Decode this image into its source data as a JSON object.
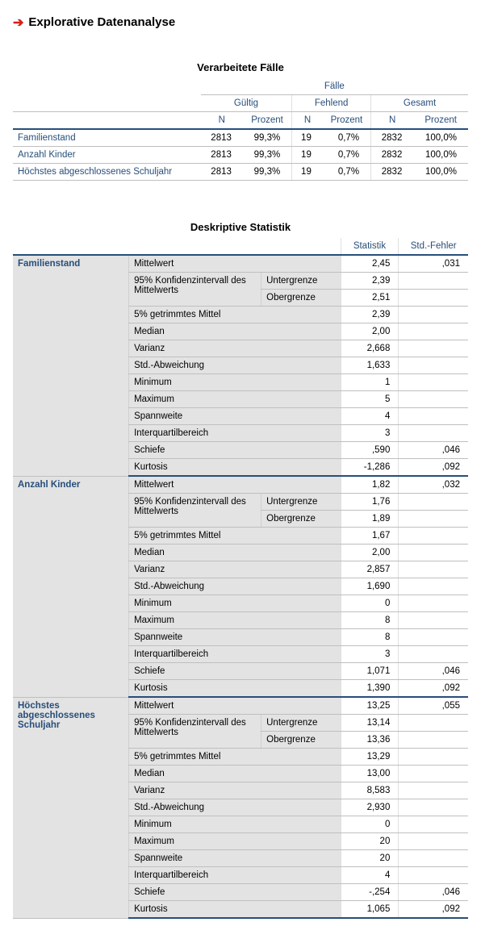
{
  "page": {
    "title": "Explorative Datenanalyse",
    "arrow_icon": "➔",
    "arrow_color": "#d62018",
    "heading_color": "#274e7a",
    "shade_color": "#e3e3e3"
  },
  "cases_table": {
    "title": "Verarbeitete Fälle",
    "super_header": "Fälle",
    "groups": [
      "Gültig",
      "Fehlend",
      "Gesamt"
    ],
    "subcols": [
      "N",
      "Prozent"
    ],
    "rows": [
      {
        "label": "Familienstand",
        "valid_n": "2813",
        "valid_pct": "99,3%",
        "miss_n": "19",
        "miss_pct": "0,7%",
        "tot_n": "2832",
        "tot_pct": "100,0%"
      },
      {
        "label": "Anzahl Kinder",
        "valid_n": "2813",
        "valid_pct": "99,3%",
        "miss_n": "19",
        "miss_pct": "0,7%",
        "tot_n": "2832",
        "tot_pct": "100,0%"
      },
      {
        "label": "Höchstes abgeschlossenes Schuljahr",
        "valid_n": "2813",
        "valid_pct": "99,3%",
        "miss_n": "19",
        "miss_pct": "0,7%",
        "tot_n": "2832",
        "tot_pct": "100,0%"
      }
    ]
  },
  "desc_table": {
    "title": "Deskriptive Statistik",
    "col_stat": "Statistik",
    "col_err": "Std.-Fehler",
    "stat_labels": {
      "mean": "Mittelwert",
      "ci95": "95% Konfidenzintervall des Mittelwerts",
      "ci_lo": "Untergrenze",
      "ci_hi": "Obergrenze",
      "trim5": "5% getrimmtes Mittel",
      "median": "Median",
      "var": "Varianz",
      "sd": "Std.-Abweichung",
      "min": "Minimum",
      "max": "Maximum",
      "range": "Spannweite",
      "iqr": "Interquartilbereich",
      "skew": "Schiefe",
      "kurt": "Kurtosis"
    },
    "vars": [
      {
        "label": "Familienstand",
        "mean": "2,45",
        "mean_se": ",031",
        "ci_lo": "2,39",
        "ci_hi": "2,51",
        "trim5": "2,39",
        "median": "2,00",
        "var": "2,668",
        "sd": "1,633",
        "min": "1",
        "max": "5",
        "range": "4",
        "iqr": "3",
        "skew": ",590",
        "skew_se": ",046",
        "kurt": "-1,286",
        "kurt_se": ",092"
      },
      {
        "label": "Anzahl Kinder",
        "mean": "1,82",
        "mean_se": ",032",
        "ci_lo": "1,76",
        "ci_hi": "1,89",
        "trim5": "1,67",
        "median": "2,00",
        "var": "2,857",
        "sd": "1,690",
        "min": "0",
        "max": "8",
        "range": "8",
        "iqr": "3",
        "skew": "1,071",
        "skew_se": ",046",
        "kurt": "1,390",
        "kurt_se": ",092"
      },
      {
        "label": "Höchstes abgeschlossenes Schuljahr",
        "mean": "13,25",
        "mean_se": ",055",
        "ci_lo": "13,14",
        "ci_hi": "13,36",
        "trim5": "13,29",
        "median": "13,00",
        "var": "8,583",
        "sd": "2,930",
        "min": "0",
        "max": "20",
        "range": "20",
        "iqr": "4",
        "skew": "-,254",
        "skew_se": ",046",
        "kurt": "1,065",
        "kurt_se": ",092"
      }
    ]
  }
}
